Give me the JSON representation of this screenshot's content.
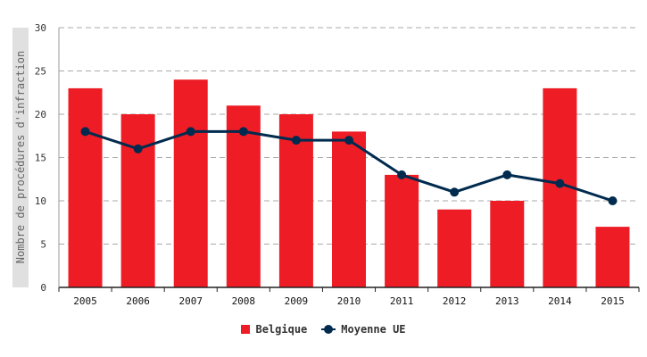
{
  "chart_data": {
    "type": "bar",
    "categories": [
      "2005",
      "2006",
      "2007",
      "2008",
      "2009",
      "2010",
      "2011",
      "2012",
      "2013",
      "2014",
      "2015"
    ],
    "series": [
      {
        "name": "Belgique",
        "kind": "bar",
        "color": "#ee1c25",
        "values": [
          23,
          20,
          24,
          21,
          20,
          18,
          13,
          9,
          10,
          23,
          7
        ]
      },
      {
        "name": "Moyenne UE",
        "kind": "line",
        "color": "#002b4f",
        "values": [
          18,
          16,
          18,
          18,
          17,
          17,
          13,
          11,
          13,
          12,
          10
        ]
      }
    ],
    "ylabel": "Nombre de procédures d'infraction",
    "ylim": [
      0,
      30
    ],
    "yticks": [
      0,
      5,
      10,
      15,
      20,
      25,
      30
    ],
    "grid": true,
    "legend": "bottom-center"
  }
}
